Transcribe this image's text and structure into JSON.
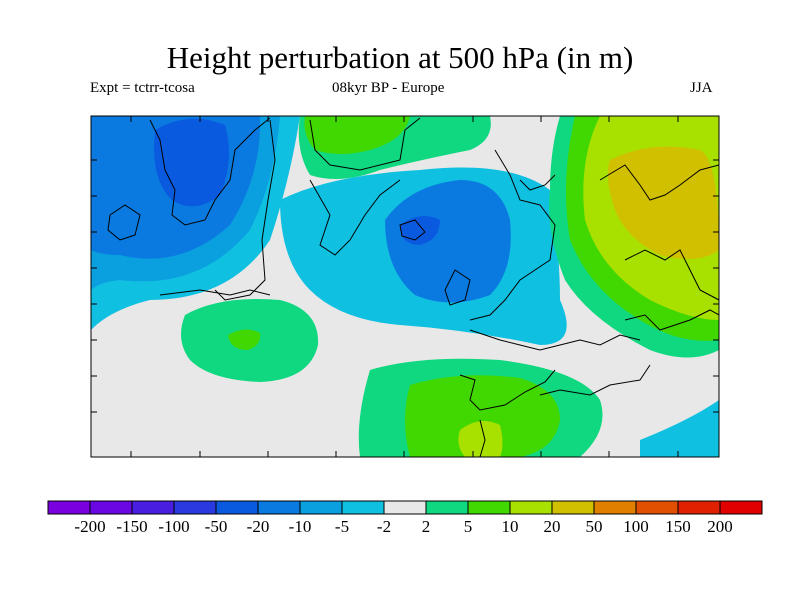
{
  "title": "Height perturbation at 500 hPa (in m)",
  "subtitle_left": "Expt = tctrr-tcosa",
  "subtitle_center": "08kyr BP - Europe",
  "subtitle_right": "JJA",
  "colorbar": {
    "colors": [
      "#7a00e0",
      "#6a08e4",
      "#4a1ee0",
      "#2a3ae0",
      "#0a5ae0",
      "#0a7ae0",
      "#0aa0e0",
      "#10c0e0",
      "#e8e8e8",
      "#10d880",
      "#40d800",
      "#a8e000",
      "#d0c000",
      "#e08000",
      "#e05000",
      "#e02000",
      "#e00000"
    ],
    "labels": [
      "-200",
      "-150",
      "-100",
      "-50",
      "-20",
      "-10",
      "-5",
      "-2",
      "2",
      "5",
      "10",
      "20",
      "50",
      "100",
      "150",
      "200"
    ]
  },
  "colors": {
    "neutral": "#e8e8e8",
    "cyan": "#10c0e0",
    "light_blue": "#0aa0e0",
    "blue": "#0a7ae0",
    "dark_blue": "#0a5ae0",
    "teal_green": "#10d880",
    "green": "#40d800",
    "yellow_green": "#a8e000",
    "olive": "#d0c000"
  }
}
